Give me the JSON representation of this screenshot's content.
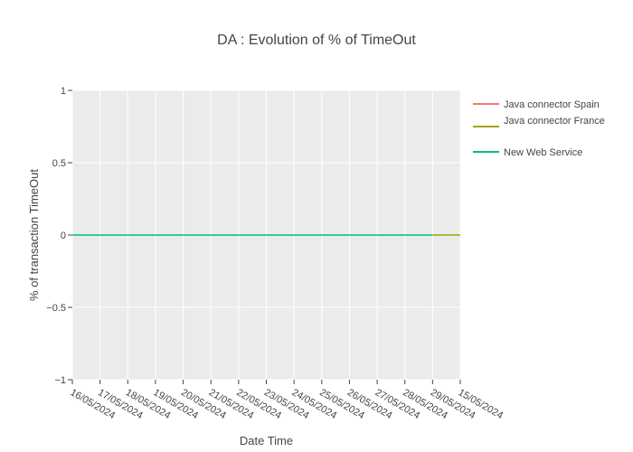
{
  "chart_data": {
    "type": "line",
    "title": "DA : Evolution of % of TimeOut",
    "xlabel": "Date Time",
    "ylabel": "% of transaction TimeOut",
    "x_categories": [
      "16/05/2024",
      "17/05/2024",
      "18/05/2024",
      "19/05/2024",
      "20/05/2024",
      "21/05/2024",
      "22/05/2024",
      "23/05/2024",
      "24/05/2024",
      "25/05/2024",
      "26/05/2024",
      "27/05/2024",
      "28/05/2024",
      "29/05/2024",
      "15/05/2024"
    ],
    "ylim": [
      -1,
      1
    ],
    "y_ticks": [
      1,
      0.5,
      0,
      -0.5,
      -1
    ],
    "y_tick_labels": [
      "1",
      "0.5",
      "0",
      "−0.5",
      "−1"
    ],
    "grid": true,
    "legend_position": "right",
    "series": [
      {
        "name": "Java connector Spain",
        "color": "#F8766D",
        "x": [],
        "y": []
      },
      {
        "name": "Java connector France",
        "color": "#A3A500",
        "x": [
          "29/05/2024",
          "15/05/2024"
        ],
        "y": [
          0,
          0
        ]
      },
      {
        "name": "New Web Service",
        "color": "#00BF7D",
        "x": [
          "16/05/2024",
          "17/05/2024",
          "18/05/2024",
          "19/05/2024",
          "20/05/2024",
          "21/05/2024",
          "22/05/2024",
          "23/05/2024",
          "24/05/2024",
          "25/05/2024",
          "26/05/2024",
          "27/05/2024",
          "28/05/2024",
          "29/05/2024"
        ],
        "y": [
          0,
          0,
          0,
          0,
          0,
          0,
          0,
          0,
          0,
          0,
          0,
          0,
          0,
          0
        ]
      }
    ],
    "plot_background": "#EBEBEB",
    "grid_color": "#FFFFFF"
  }
}
